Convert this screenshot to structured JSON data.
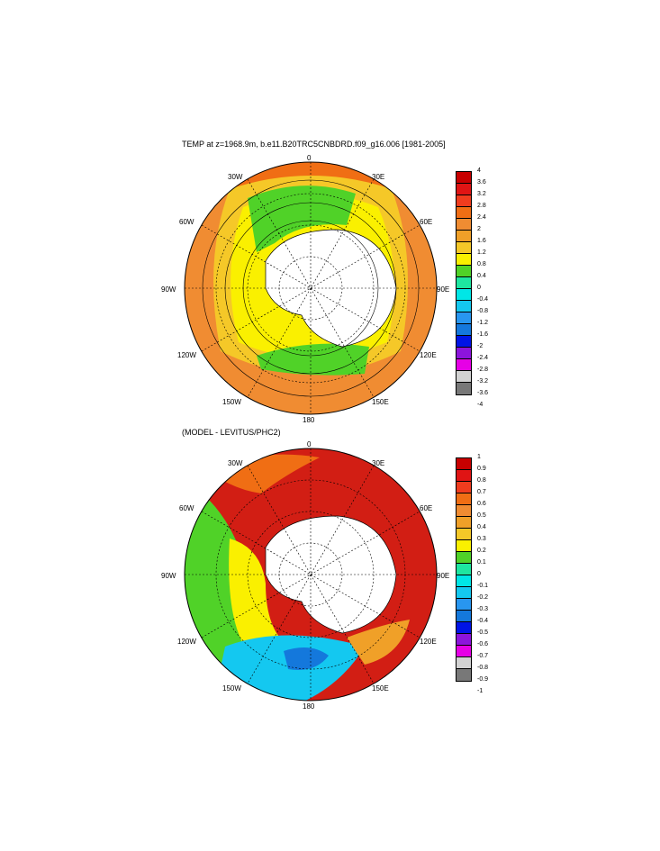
{
  "panels": [
    {
      "title": "TEMP at z=1968.9m, b.e11.B20TRC5CNBDRD.f09_g16.006 [1981-2005]",
      "lon_labels": {
        "top": "0",
        "t30e": "30E",
        "t60e": "60E",
        "t90e": "90E",
        "t120e": "120E",
        "t150e": "150E",
        "bottom": "180",
        "t150w": "150W",
        "t120w": "120W",
        "t90w": "90W",
        "t60w": "60W",
        "t30w": "30W"
      },
      "colorbar_labels": [
        "4",
        "3.6",
        "3.2",
        "2.8",
        "2.4",
        "2",
        "1.6",
        "1.2",
        "0.8",
        "0.4",
        "0",
        "-0.4",
        "-0.8",
        "-1.2",
        "-1.6",
        "-2",
        "-2.4",
        "-2.8",
        "-3.2",
        "-3.6",
        "-4"
      ],
      "colorbar_colors": [
        "#c80000",
        "#e01414",
        "#f03c1e",
        "#f06e14",
        "#f08c32",
        "#f0a028",
        "#f5c828",
        "#faf000",
        "#50d228",
        "#1ee6a0",
        "#00e6e6",
        "#14c8f0",
        "#2896f0",
        "#1478dc",
        "#0014e6",
        "#8c14dc",
        "#e600e6",
        "#d2d2d2",
        "#787878"
      ],
      "fields": {
        "ocean": "#f08c32",
        "ring": "#f5c828",
        "inner": "#faf000",
        "green": "#50d228"
      }
    },
    {
      "title": "(MODEL - LEVITUS/PHC2)",
      "lon_labels": {
        "top": "0",
        "t30e": "30E",
        "t60e": "60E",
        "t90e": "90E",
        "t120e": "120E",
        "t150e": "150E",
        "bottom": "180",
        "t150w": "150W",
        "t120w": "120W",
        "t90w": "90W",
        "t60w": "60W",
        "t30w": "30W"
      },
      "colorbar_labels": [
        "1",
        "0.9",
        "0.8",
        "0.7",
        "0.6",
        "0.5",
        "0.4",
        "0.3",
        "0.2",
        "0.1",
        "0",
        "-0.1",
        "-0.2",
        "-0.3",
        "-0.4",
        "-0.5",
        "-0.6",
        "-0.7",
        "-0.8",
        "-0.9",
        "-1"
      ],
      "colorbar_colors": [
        "#c80000",
        "#e01414",
        "#f03c1e",
        "#f06e14",
        "#f08c32",
        "#f0a028",
        "#f5c828",
        "#faf000",
        "#50d228",
        "#1ee6a0",
        "#00e6e6",
        "#14c8f0",
        "#2896f0",
        "#1478dc",
        "#0014e6",
        "#8c14dc",
        "#e600e6",
        "#d2d2d2",
        "#787878"
      ],
      "fields": {
        "east": "#d21e14",
        "north": "#d21e14",
        "west_green": "#50d228",
        "south_cyan": "#00c8e6",
        "yellow": "#faf000"
      }
    }
  ]
}
